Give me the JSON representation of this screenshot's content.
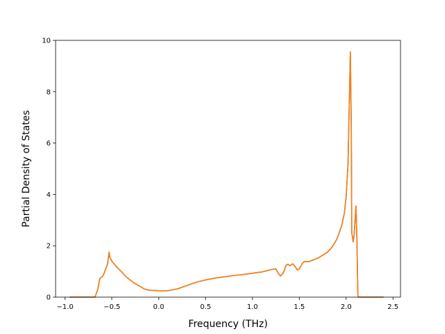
{
  "chart_data": {
    "type": "line",
    "title": "",
    "xlabel": "Frequency (THz)",
    "ylabel": "Partial Density of States",
    "xlim": [
      -1.1,
      2.58
    ],
    "ylim": [
      0,
      10
    ],
    "xticks": [
      -1.0,
      -0.5,
      0.0,
      0.5,
      1.0,
      1.5,
      2.0,
      2.5
    ],
    "xtick_labels": [
      "−1.0",
      "−0.5",
      "0.0",
      "0.5",
      "1.0",
      "1.5",
      "2.0",
      "2.5"
    ],
    "yticks": [
      0,
      2,
      4,
      6,
      8,
      10
    ],
    "ytick_labels": [
      "0",
      "2",
      "4",
      "6",
      "8",
      "10"
    ],
    "grid": false,
    "series": [
      {
        "color": "#1f77b4",
        "x": [
          -0.95,
          -0.68,
          -0.65,
          -0.63,
          -0.61,
          -0.6,
          -0.58,
          -0.56,
          -0.545,
          -0.53,
          -0.52,
          -0.5,
          -0.45,
          -0.4,
          -0.35,
          -0.3,
          -0.25,
          -0.2,
          -0.15,
          -0.1,
          0.0,
          0.1,
          0.2,
          0.3,
          0.4,
          0.5,
          0.6,
          0.7,
          0.8,
          0.9,
          1.0,
          1.1,
          1.2,
          1.25,
          1.28,
          1.3,
          1.33,
          1.36,
          1.38,
          1.4,
          1.43,
          1.45,
          1.48,
          1.5,
          1.53,
          1.55,
          1.6,
          1.7,
          1.8,
          1.85,
          1.9,
          1.95,
          1.98,
          2.0,
          2.02,
          2.035,
          2.045,
          2.055,
          2.06,
          2.065,
          2.075,
          2.085,
          2.095,
          2.105,
          2.115,
          2.125,
          2.13,
          2.4
        ],
        "y": [
          0.0,
          0.0,
          0.3,
          0.72,
          0.78,
          0.8,
          0.95,
          1.15,
          1.3,
          1.75,
          1.55,
          1.4,
          1.18,
          1.0,
          0.8,
          0.65,
          0.52,
          0.42,
          0.31,
          0.27,
          0.25,
          0.25,
          0.32,
          0.45,
          0.58,
          0.67,
          0.74,
          0.79,
          0.84,
          0.88,
          0.93,
          0.98,
          1.07,
          1.1,
          0.9,
          0.82,
          0.95,
          1.25,
          1.28,
          1.22,
          1.3,
          1.22,
          1.05,
          1.1,
          1.3,
          1.38,
          1.38,
          1.52,
          1.75,
          1.95,
          2.25,
          2.75,
          3.25,
          3.9,
          5.2,
          7.8,
          9.55,
          6.5,
          2.5,
          2.4,
          2.15,
          2.4,
          3.0,
          3.55,
          2.2,
          0.1,
          0.0,
          0.0
        ]
      },
      {
        "color": "#ff7f0e",
        "x": [
          -0.95,
          -0.68,
          -0.65,
          -0.63,
          -0.61,
          -0.6,
          -0.58,
          -0.56,
          -0.545,
          -0.53,
          -0.52,
          -0.5,
          -0.45,
          -0.4,
          -0.35,
          -0.3,
          -0.25,
          -0.2,
          -0.15,
          -0.1,
          0.0,
          0.1,
          0.2,
          0.3,
          0.4,
          0.5,
          0.6,
          0.7,
          0.8,
          0.9,
          1.0,
          1.1,
          1.2,
          1.25,
          1.28,
          1.3,
          1.33,
          1.36,
          1.38,
          1.4,
          1.43,
          1.45,
          1.48,
          1.5,
          1.53,
          1.55,
          1.6,
          1.7,
          1.8,
          1.85,
          1.9,
          1.95,
          1.98,
          2.0,
          2.02,
          2.035,
          2.045,
          2.055,
          2.06,
          2.065,
          2.075,
          2.085,
          2.095,
          2.105,
          2.115,
          2.125,
          2.13,
          2.4
        ],
        "y": [
          0.0,
          0.0,
          0.3,
          0.72,
          0.78,
          0.8,
          0.95,
          1.15,
          1.3,
          1.75,
          1.55,
          1.4,
          1.18,
          1.0,
          0.8,
          0.65,
          0.52,
          0.42,
          0.31,
          0.27,
          0.25,
          0.25,
          0.32,
          0.45,
          0.58,
          0.67,
          0.74,
          0.79,
          0.84,
          0.88,
          0.93,
          0.98,
          1.07,
          1.1,
          0.9,
          0.82,
          0.95,
          1.25,
          1.28,
          1.22,
          1.3,
          1.22,
          1.05,
          1.1,
          1.3,
          1.38,
          1.38,
          1.52,
          1.75,
          1.95,
          2.25,
          2.75,
          3.25,
          3.9,
          5.2,
          7.8,
          9.55,
          6.5,
          2.5,
          2.4,
          2.15,
          2.4,
          3.0,
          3.55,
          2.2,
          0.1,
          0.0,
          0.0
        ]
      }
    ]
  }
}
